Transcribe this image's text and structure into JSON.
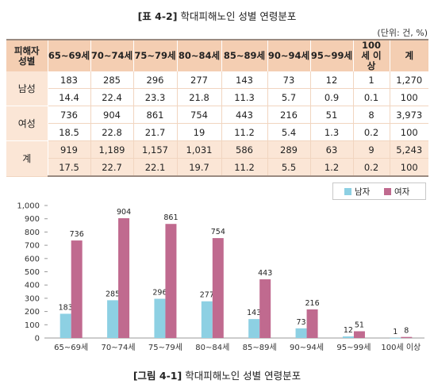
{
  "table": {
    "number": "[표 4-2]",
    "title": "학대피해노인 성별 연령분포",
    "unit": "(단위: 건, %)",
    "header_first": "피해자 성별",
    "columns": [
      "65~69세",
      "70~74세",
      "75~79세",
      "80~84세",
      "85~89세",
      "90~94세",
      "95~99세",
      "100세 이상",
      "계"
    ],
    "groups": [
      {
        "label": "남성",
        "counts": [
          "183",
          "285",
          "296",
          "277",
          "143",
          "73",
          "12",
          "1",
          "1,270"
        ],
        "pcts": [
          "14.4",
          "22.4",
          "23.3",
          "21.8",
          "11.3",
          "5.7",
          "0.9",
          "0.1",
          "100"
        ]
      },
      {
        "label": "여성",
        "counts": [
          "736",
          "904",
          "861",
          "754",
          "443",
          "216",
          "51",
          "8",
          "3,973"
        ],
        "pcts": [
          "18.5",
          "22.8",
          "21.7",
          "19",
          "11.2",
          "5.4",
          "1.3",
          "0.2",
          "100"
        ]
      },
      {
        "label": "계",
        "counts": [
          "919",
          "1,189",
          "1,157",
          "1,031",
          "586",
          "289",
          "63",
          "9",
          "5,243"
        ],
        "pcts": [
          "17.5",
          "22.7",
          "22.1",
          "19.7",
          "11.2",
          "5.5",
          "1.2",
          "0.2",
          "100"
        ]
      }
    ]
  },
  "figure": {
    "number": "[그림 4-1]",
    "title": "학대피해노인 성별 연령분포"
  },
  "chart_data": {
    "type": "bar",
    "categories": [
      "65~69세",
      "70~74세",
      "75~79세",
      "80~84세",
      "85~89세",
      "90~94세",
      "95~99세",
      "100세 이상"
    ],
    "series": [
      {
        "name": "남자",
        "values": [
          183,
          285,
          296,
          277,
          143,
          73,
          12,
          1
        ],
        "color": "#8dd0e3"
      },
      {
        "name": "여자",
        "values": [
          736,
          904,
          861,
          754,
          443,
          216,
          51,
          8
        ],
        "color": "#c06a8f"
      }
    ],
    "ylim": [
      0,
      1000
    ],
    "yticks": [
      "0",
      "100",
      "200",
      "300",
      "400",
      "500",
      "600",
      "700",
      "800",
      "900",
      "1,000"
    ],
    "legend": "top-right",
    "grid": false
  }
}
